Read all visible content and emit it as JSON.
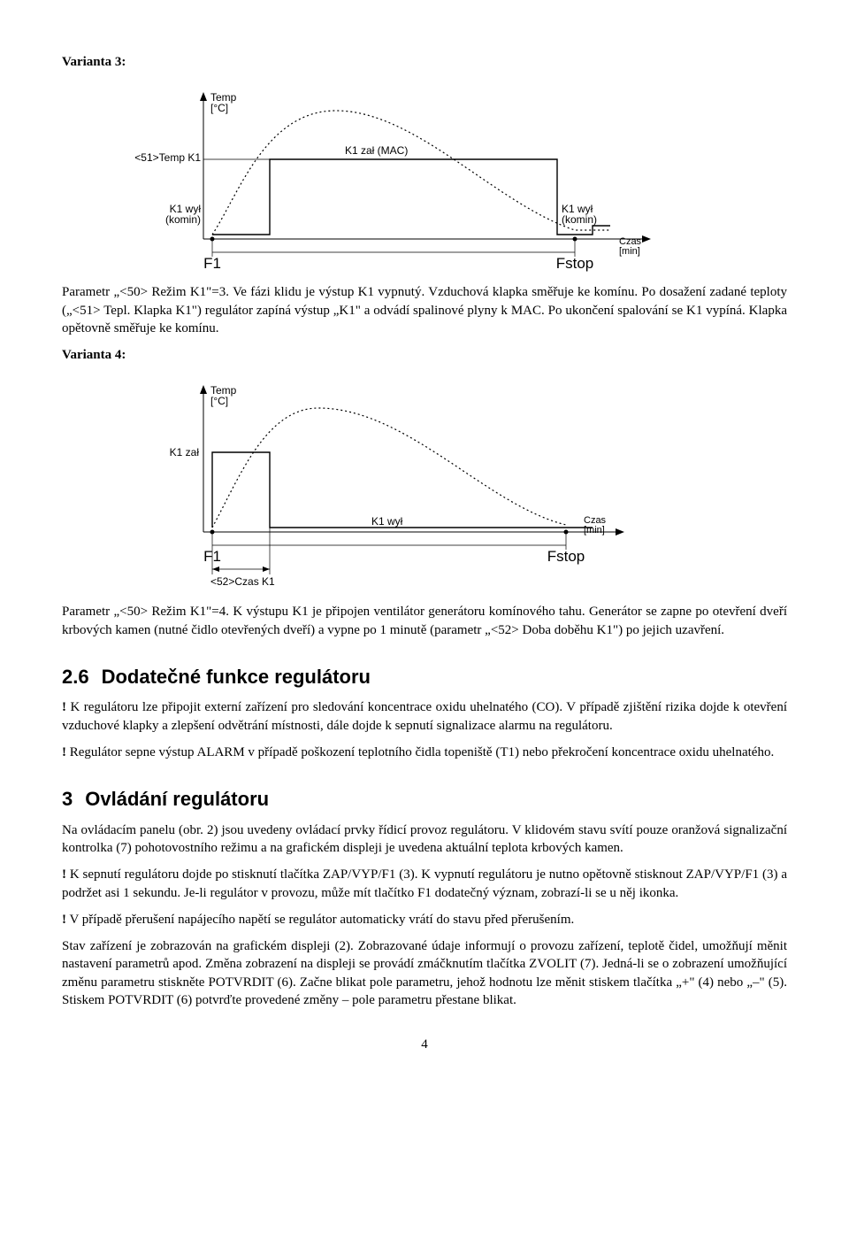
{
  "heading_variant3": "Varianta 3:",
  "heading_variant4": "Varianta 4:",
  "para_v3": "Parametr „<50> Režim K1\"=3. Ve fázi klidu je výstup K1 vypnutý. Vzduchová klapka směřuje ke komínu. Po dosažení zadané teploty („<51> Tepl. Klapka K1\") regulátor zapíná výstup „K1\" a odvádí spalinové plyny k MAC. Po ukončení spalování se K1 vypíná. Klapka opětovně směřuje ke komínu.",
  "para_v4": "Parametr „<50> Režim K1\"=4. K výstupu K1 je připojen ventilátor generátoru komínového tahu. Generátor se zapne po otevření dveří krbových kamen (nutné čidlo otevřených dveří) a vypne po 1 minutě (parametr „<52> Doba doběhu K1\") po jejich uzavření.",
  "heading_2_6": "Dodatečné funkce regulátoru",
  "heading_2_6_num": "2.6",
  "para_2_6_a": "K regulátoru lze připojit externí zařízení pro sledování koncentrace oxidu uhelnatého (CO). V případě zjištění rizika dojde k otevření vzduchové klapky a zlepšení odvětrání místnosti, dále dojde k sepnutí signalizace alarmu na regulátoru.",
  "para_2_6_b": "Regulátor sepne výstup ALARM v případě poškození teplotního čidla topeniště (T1) nebo překročení koncentrace oxidu uhelnatého.",
  "heading_3_num": "3",
  "heading_3": "Ovládání regulátoru",
  "para_3_a": "Na ovládacím panelu (obr. 2) jsou uvedeny ovládací prvky řídicí provoz regulátoru. V klidovém stavu svítí pouze oranžová signalizační kontrolka (7) pohotovostního režimu a na grafickém displeji je uvedena aktuální teplota krbových kamen.",
  "para_3_b": "K sepnutí regulátoru dojde po stisknutí tlačítka ZAP/VYP/F1 (3). K vypnutí regulátoru je nutno opětovně stisknout ZAP/VYP/F1 (3) a podržet asi 1 sekundu. Je-li regulátor v provozu, může mít tlačítko F1 dodatečný význam, zobrazí-li se u něj ikonka.",
  "para_3_c": "V případě přerušení napájecího napětí se regulátor automaticky vrátí do stavu před přerušením.",
  "para_3_d": "Stav zařízení je zobrazován na grafickém displeji (2). Zobrazované údaje informují o provozu zařízení, teplotě čidel, umožňují měnit nastavení parametrů apod. Změna zobrazení na displeji se provádí zmáčknutím tlačítka ZVOLIT (7). Jedná-li se o zobrazení umožňující změnu parametru stiskněte POTVRDIT (6). Začne blikat pole parametru, jehož hodnotu lze měnit stiskem tlačítka „+\" (4) nebo „–\" (5). Stiskem POTVRDIT (6) potvrďte provedené změny – pole parametru přestane blikat.",
  "pagenum": "4",
  "chart3": {
    "labels": {
      "y_axis": "Temp\n[°C]",
      "x_axis": "Czas\n[min]",
      "left_threshold": "<51>Temp K1",
      "k1_wyl_left": "K1 wył\n(komin)",
      "k1_zal_mac": "K1 zał (MAC)",
      "k1_wyl_right": "K1 wył\n(komin)",
      "f1": "F1",
      "fstop": "Fstop"
    },
    "colors": {
      "line": "#000000",
      "dotted": "#000000",
      "bg": "#ffffff"
    }
  },
  "chart4": {
    "labels": {
      "y_axis": "Temp\n[°C]",
      "x_axis": "Czas\n[min]",
      "k1_zal": "K1 zał",
      "k1_wyl": "K1 wył",
      "f1": "F1",
      "fstop": "Fstop",
      "czas_k1": "<52>Czas K1"
    },
    "colors": {
      "line": "#000000",
      "dotted": "#000000",
      "bg": "#ffffff"
    }
  }
}
